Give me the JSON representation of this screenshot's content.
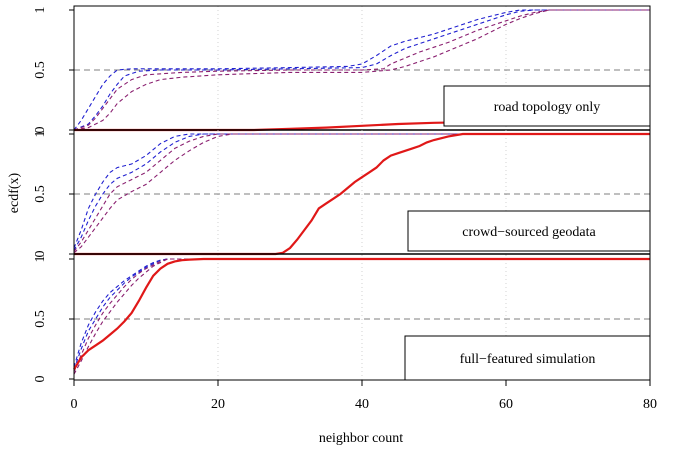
{
  "chart_data": {
    "type": "line",
    "xlabel": "neighbor count",
    "ylabel": "ecdf(x)",
    "xlim": [
      0,
      80
    ],
    "ylim": [
      0,
      1
    ],
    "x_ticks": [
      "0",
      "20",
      "40",
      "60",
      "80"
    ],
    "y_ticks": [
      "0",
      "0.5",
      "1"
    ],
    "reference_line": 0.5,
    "colors": {
      "ensemble_blue": "#2020d0",
      "ensemble_purple": "#8a2070",
      "main_red": "#e01818"
    },
    "panels": [
      {
        "label": "road topology only",
        "series": [
          {
            "style": "dashed-blue",
            "x": [
              0,
              1,
              2,
              3,
              4,
              5,
              6,
              8,
              10,
              15,
              20,
              30,
              38,
              40,
              42,
              44,
              46,
              48,
              50,
              52,
              54,
              56,
              58,
              60,
              62,
              80
            ],
            "y": [
              0,
              0.08,
              0.18,
              0.28,
              0.38,
              0.45,
              0.5,
              0.51,
              0.51,
              0.51,
              0.51,
              0.52,
              0.53,
              0.55,
              0.62,
              0.7,
              0.74,
              0.77,
              0.8,
              0.84,
              0.88,
              0.92,
              0.95,
              0.98,
              1.0,
              1.0
            ]
          },
          {
            "style": "dashed-blue",
            "x": [
              0,
              2,
              3,
              4,
              5,
              6,
              7,
              9,
              12,
              20,
              30,
              40,
              42,
              44,
              46,
              48,
              50,
              52,
              54,
              56,
              58,
              60,
              62,
              64,
              80
            ],
            "y": [
              0,
              0.05,
              0.12,
              0.2,
              0.3,
              0.38,
              0.45,
              0.49,
              0.5,
              0.5,
              0.51,
              0.52,
              0.55,
              0.62,
              0.68,
              0.72,
              0.76,
              0.8,
              0.84,
              0.88,
              0.92,
              0.96,
              0.99,
              1.0,
              1.0
            ]
          },
          {
            "style": "dashed-purple",
            "x": [
              0,
              2,
              3,
              4,
              5,
              6,
              8,
              10,
              15,
              20,
              30,
              40,
              43,
              44,
              46,
              48,
              50,
              52,
              54,
              56,
              58,
              60,
              62,
              64,
              66,
              80
            ],
            "y": [
              0,
              0.04,
              0.1,
              0.18,
              0.26,
              0.34,
              0.42,
              0.46,
              0.48,
              0.49,
              0.5,
              0.5,
              0.51,
              0.55,
              0.6,
              0.65,
              0.69,
              0.73,
              0.78,
              0.83,
              0.87,
              0.91,
              0.95,
              0.98,
              1.0,
              1.0
            ]
          },
          {
            "style": "dashed-purple",
            "x": [
              0,
              2,
              4,
              5,
              6,
              8,
              10,
              12,
              15,
              20,
              30,
              40,
              44,
              46,
              48,
              50,
              52,
              54,
              56,
              58,
              60,
              62,
              64,
              66,
              80
            ],
            "y": [
              0,
              0.02,
              0.08,
              0.14,
              0.22,
              0.32,
              0.38,
              0.42,
              0.44,
              0.46,
              0.48,
              0.48,
              0.5,
              0.53,
              0.57,
              0.61,
              0.66,
              0.71,
              0.76,
              0.82,
              0.88,
              0.93,
              0.97,
              1.0,
              1.0
            ]
          },
          {
            "style": "solid-red",
            "x": [
              0,
              25,
              30,
              35,
              40,
              45,
              50,
              55,
              60,
              65,
              70,
              75,
              78,
              80
            ],
            "y": [
              0,
              0,
              0.01,
              0.02,
              0.035,
              0.05,
              0.06,
              0.065,
              0.068,
              0.07,
              0.072,
              0.075,
              0.085,
              0.12
            ]
          }
        ]
      },
      {
        "label": "crowd−sourced geodata",
        "series": [
          {
            "style": "dashed-blue",
            "x": [
              0,
              1,
              2,
              3,
              4,
              5,
              6,
              8,
              10,
              12,
              14,
              16,
              20,
              80
            ],
            "y": [
              0.05,
              0.2,
              0.38,
              0.5,
              0.6,
              0.68,
              0.72,
              0.75,
              0.82,
              0.92,
              0.98,
              1.0,
              1.0,
              1.0
            ]
          },
          {
            "style": "dashed-blue",
            "x": [
              0,
              1,
              2,
              3,
              4,
              5,
              6,
              8,
              10,
              12,
              14,
              16,
              18,
              20,
              80
            ],
            "y": [
              0.03,
              0.14,
              0.28,
              0.4,
              0.5,
              0.58,
              0.63,
              0.68,
              0.75,
              0.85,
              0.93,
              0.98,
              1.0,
              1.0,
              1.0
            ]
          },
          {
            "style": "dashed-purple",
            "x": [
              0,
              1,
              2,
              3,
              4,
              5,
              6,
              8,
              10,
              12,
              14,
              16,
              18,
              20,
              80
            ],
            "y": [
              0.02,
              0.1,
              0.2,
              0.3,
              0.4,
              0.5,
              0.56,
              0.62,
              0.68,
              0.78,
              0.88,
              0.94,
              0.98,
              1.0,
              1.0
            ]
          },
          {
            "style": "dashed-purple",
            "x": [
              0,
              1,
              2,
              3,
              4,
              5,
              6,
              8,
              10,
              12,
              14,
              16,
              18,
              20,
              22,
              80
            ],
            "y": [
              0.01,
              0.06,
              0.14,
              0.22,
              0.3,
              0.38,
              0.45,
              0.52,
              0.58,
              0.68,
              0.78,
              0.86,
              0.93,
              0.98,
              1.0,
              1.0
            ]
          },
          {
            "style": "solid-red",
            "x": [
              0,
              20,
              22,
              24,
              26,
              28,
              29,
              30,
              31,
              32,
              33,
              34,
              35,
              36,
              37,
              38,
              39,
              40,
              41,
              42,
              43,
              44,
              45,
              46,
              47,
              48,
              49,
              50,
              52,
              54,
              80
            ],
            "y": [
              0,
              0,
              0,
              0.0,
              0.0,
              0.0,
              0.01,
              0.05,
              0.12,
              0.2,
              0.28,
              0.38,
              0.42,
              0.46,
              0.5,
              0.55,
              0.6,
              0.64,
              0.68,
              0.72,
              0.78,
              0.82,
              0.84,
              0.86,
              0.88,
              0.9,
              0.93,
              0.95,
              0.98,
              1.0,
              1.0
            ]
          }
        ]
      },
      {
        "label": "full−featured simulation",
        "series": [
          {
            "style": "dashed-blue",
            "x": [
              0,
              1,
              2,
              3,
              4,
              5,
              6,
              7,
              8,
              9,
              10,
              11,
              12,
              13,
              80
            ],
            "y": [
              0.1,
              0.3,
              0.45,
              0.56,
              0.65,
              0.72,
              0.77,
              0.82,
              0.86,
              0.9,
              0.94,
              0.97,
              0.99,
              1.0,
              1.0
            ]
          },
          {
            "style": "dashed-blue",
            "x": [
              0,
              1,
              2,
              3,
              4,
              5,
              6,
              7,
              8,
              9,
              10,
              11,
              12,
              13,
              80
            ],
            "y": [
              0.08,
              0.25,
              0.4,
              0.5,
              0.6,
              0.68,
              0.74,
              0.8,
              0.85,
              0.89,
              0.93,
              0.96,
              0.99,
              1.0,
              1.0
            ]
          },
          {
            "style": "dashed-purple",
            "x": [
              0,
              1,
              2,
              3,
              4,
              5,
              6,
              7,
              8,
              9,
              10,
              11,
              12,
              13,
              80
            ],
            "y": [
              0.06,
              0.2,
              0.34,
              0.45,
              0.55,
              0.63,
              0.7,
              0.77,
              0.83,
              0.88,
              0.92,
              0.95,
              0.98,
              1.0,
              1.0
            ]
          },
          {
            "style": "dashed-purple",
            "x": [
              0,
              1,
              2,
              3,
              4,
              5,
              6,
              7,
              8,
              9,
              10,
              11,
              12,
              13,
              80
            ],
            "y": [
              0.04,
              0.15,
              0.27,
              0.38,
              0.48,
              0.56,
              0.64,
              0.71,
              0.78,
              0.84,
              0.89,
              0.94,
              0.97,
              1.0,
              1.0
            ]
          },
          {
            "style": "solid-red",
            "x": [
              0,
              1,
              2,
              3,
              4,
              5,
              6,
              7,
              8,
              9,
              10,
              11,
              12,
              13,
              14,
              15,
              16,
              18,
              20,
              80
            ],
            "y": [
              0.08,
              0.18,
              0.24,
              0.28,
              0.32,
              0.37,
              0.42,
              0.48,
              0.55,
              0.65,
              0.76,
              0.86,
              0.92,
              0.96,
              0.98,
              0.99,
              0.995,
              1.0,
              1.0,
              1.0
            ]
          }
        ]
      }
    ]
  }
}
